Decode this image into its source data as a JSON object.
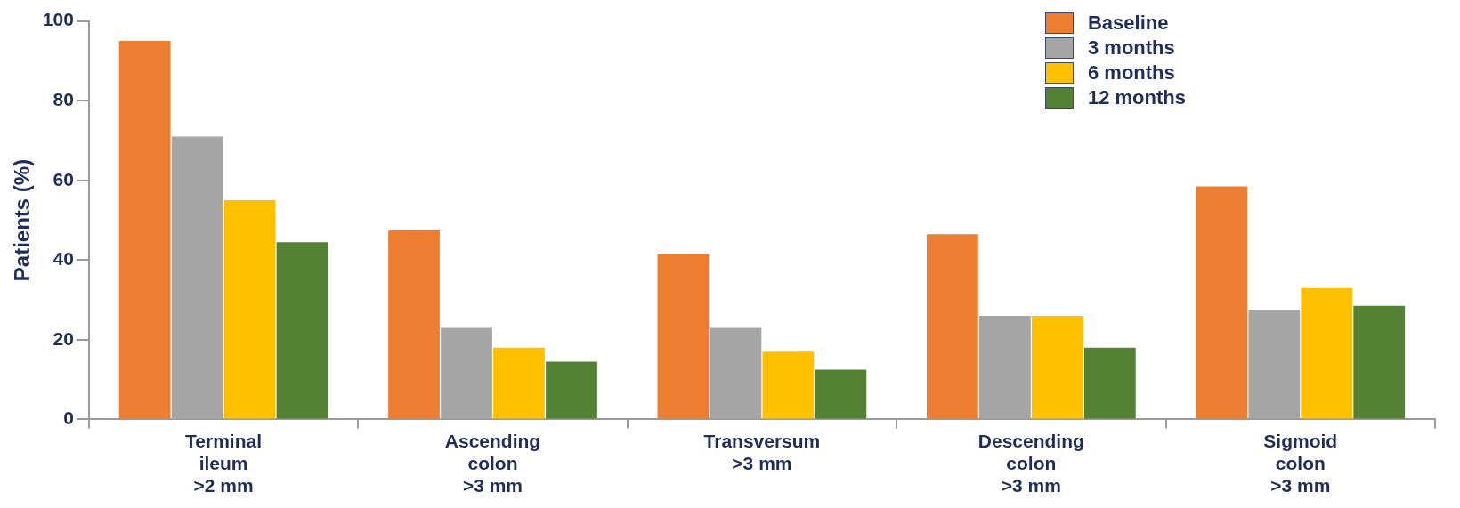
{
  "chart_data": {
    "type": "bar",
    "ylabel": "Patients (%)",
    "categories": [
      "Terminal\nileum\n>2 mm",
      "Ascending\ncolon\n>3 mm",
      "Transversum\n>3 mm",
      "Descending\ncolon\n>3 mm",
      "Sigmoid\ncolon\n>3 mm"
    ],
    "series": [
      {
        "name": "Baseline",
        "color": "#ed7d31",
        "values": [
          95,
          47.5,
          41.5,
          46.5,
          58.5
        ]
      },
      {
        "name": "3 months",
        "color": "#a5a5a5",
        "values": [
          71,
          23,
          23,
          26,
          27.5
        ]
      },
      {
        "name": "6 months",
        "color": "#ffc000",
        "values": [
          55,
          18,
          17,
          26,
          33
        ]
      },
      {
        "name": "12 months",
        "color": "#548235",
        "values": [
          44.5,
          14.5,
          12.5,
          18,
          28.5
        ]
      }
    ],
    "ylim": [
      0,
      100
    ],
    "yticks": [
      0,
      20,
      40,
      60,
      80,
      100
    ],
    "grid": false,
    "legend": "top right"
  }
}
